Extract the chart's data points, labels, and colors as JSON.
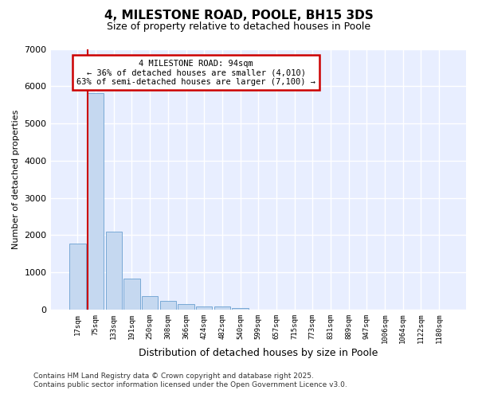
{
  "title": "4, MILESTONE ROAD, POOLE, BH15 3DS",
  "subtitle": "Size of property relative to detached houses in Poole",
  "xlabel": "Distribution of detached houses by size in Poole",
  "ylabel": "Number of detached properties",
  "categories": [
    "17sqm",
    "75sqm",
    "133sqm",
    "191sqm",
    "250sqm",
    "308sqm",
    "366sqm",
    "424sqm",
    "482sqm",
    "540sqm",
    "599sqm",
    "657sqm",
    "715sqm",
    "773sqm",
    "831sqm",
    "889sqm",
    "947sqm",
    "1006sqm",
    "1064sqm",
    "1122sqm",
    "1180sqm"
  ],
  "values": [
    1780,
    5820,
    2090,
    840,
    370,
    240,
    140,
    90,
    90,
    40,
    0,
    0,
    0,
    0,
    0,
    0,
    0,
    0,
    0,
    0,
    0
  ],
  "bar_color": "#c5d8f0",
  "bar_edge_color": "#6aa0d0",
  "vline_color": "#cc0000",
  "ylim": [
    0,
    7000
  ],
  "yticks": [
    0,
    1000,
    2000,
    3000,
    4000,
    5000,
    6000,
    7000
  ],
  "annotation_title": "4 MILESTONE ROAD: 94sqm",
  "annotation_line1": "← 36% of detached houses are smaller (4,010)",
  "annotation_line2": "63% of semi-detached houses are larger (7,100) →",
  "annotation_box_color": "#cc0000",
  "plot_bg_color": "#e8eeff",
  "fig_bg_color": "#ffffff",
  "grid_color": "#ffffff",
  "footer_line1": "Contains HM Land Registry data © Crown copyright and database right 2025.",
  "footer_line2": "Contains public sector information licensed under the Open Government Licence v3.0."
}
